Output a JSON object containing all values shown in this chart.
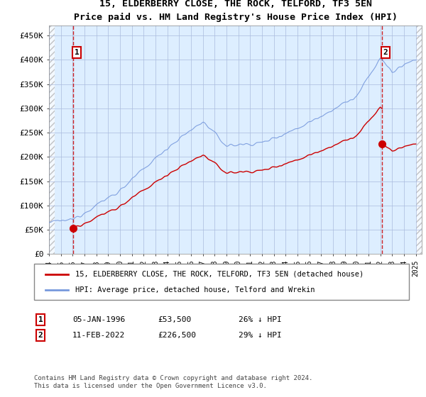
{
  "title": "15, ELDERBERRY CLOSE, THE ROCK, TELFORD, TF3 5EN",
  "subtitle": "Price paid vs. HM Land Registry's House Price Index (HPI)",
  "xlim_start": 1994.0,
  "xlim_end": 2025.5,
  "ylim": [
    0,
    470000
  ],
  "yticks": [
    0,
    50000,
    100000,
    150000,
    200000,
    250000,
    300000,
    350000,
    400000,
    450000
  ],
  "ytick_labels": [
    "£0",
    "£50K",
    "£100K",
    "£150K",
    "£200K",
    "£250K",
    "£300K",
    "£350K",
    "£400K",
    "£450K"
  ],
  "xticks": [
    1994,
    1995,
    1996,
    1997,
    1998,
    1999,
    2000,
    2001,
    2002,
    2003,
    2004,
    2005,
    2006,
    2007,
    2008,
    2009,
    2010,
    2011,
    2012,
    2013,
    2014,
    2015,
    2016,
    2017,
    2018,
    2019,
    2020,
    2021,
    2022,
    2023,
    2024,
    2025
  ],
  "sale1_year": 1996.04,
  "sale1_price": 53500,
  "sale2_year": 2022.12,
  "sale2_price": 226500,
  "legend_line1": "15, ELDERBERRY CLOSE, THE ROCK, TELFORD, TF3 5EN (detached house)",
  "legend_line2": "HPI: Average price, detached house, Telford and Wrekin",
  "annotation1": "1",
  "annotation2": "2",
  "ann1_date": "05-JAN-1996",
  "ann1_price": "£53,500",
  "ann1_pct": "26% ↓ HPI",
  "ann2_date": "11-FEB-2022",
  "ann2_price": "£226,500",
  "ann2_pct": "29% ↓ HPI",
  "copyright": "Contains HM Land Registry data © Crown copyright and database right 2024.\nThis data is licensed under the Open Government Licence v3.0.",
  "hpi_color": "#7799dd",
  "sale_color": "#cc0000",
  "bg_color": "#ddeeff",
  "grid_color": "#aabbdd"
}
